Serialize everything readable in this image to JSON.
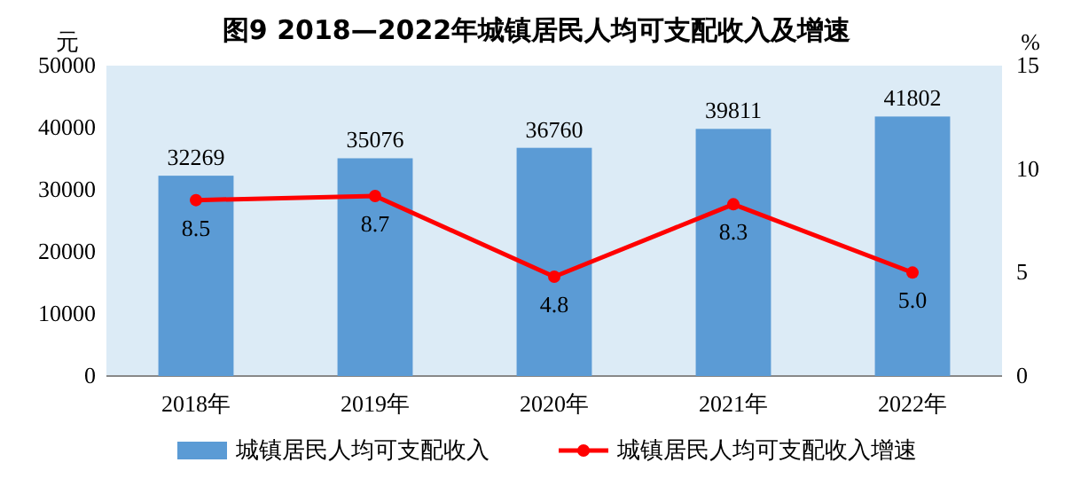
{
  "chart_data": {
    "type": "bar",
    "title": "图9  2018—2022年城镇居民人均可支配收入及增速",
    "categories": [
      "2018年",
      "2019年",
      "2020年",
      "2021年",
      "2022年"
    ],
    "ylabel": "元",
    "y2label": "%",
    "ylim": [
      0,
      50000
    ],
    "yticks": [
      0,
      10000,
      20000,
      30000,
      40000,
      50000
    ],
    "y2lim": [
      0,
      15
    ],
    "y2ticks": [
      0,
      5,
      10,
      15
    ],
    "legend": "bottom",
    "grid": false,
    "series": [
      {
        "name": "城镇居民人均可支配收入",
        "color": "#5b9bd5",
        "values": [
          32269,
          35076,
          36760,
          39811,
          41802
        ],
        "value_labels": [
          "32269",
          "35076",
          "36760",
          "39811",
          "41802"
        ]
      },
      {
        "name": "城镇居民人均可支配收入增速",
        "type": "line",
        "axis": "y2",
        "color": "#ff0000",
        "marker": "circle",
        "line_style": "solid",
        "values": [
          8.5,
          8.7,
          4.8,
          8.3,
          5.0
        ],
        "value_labels": [
          "8.5",
          "8.7",
          "4.8",
          "8.3",
          "5.0"
        ]
      }
    ]
  }
}
